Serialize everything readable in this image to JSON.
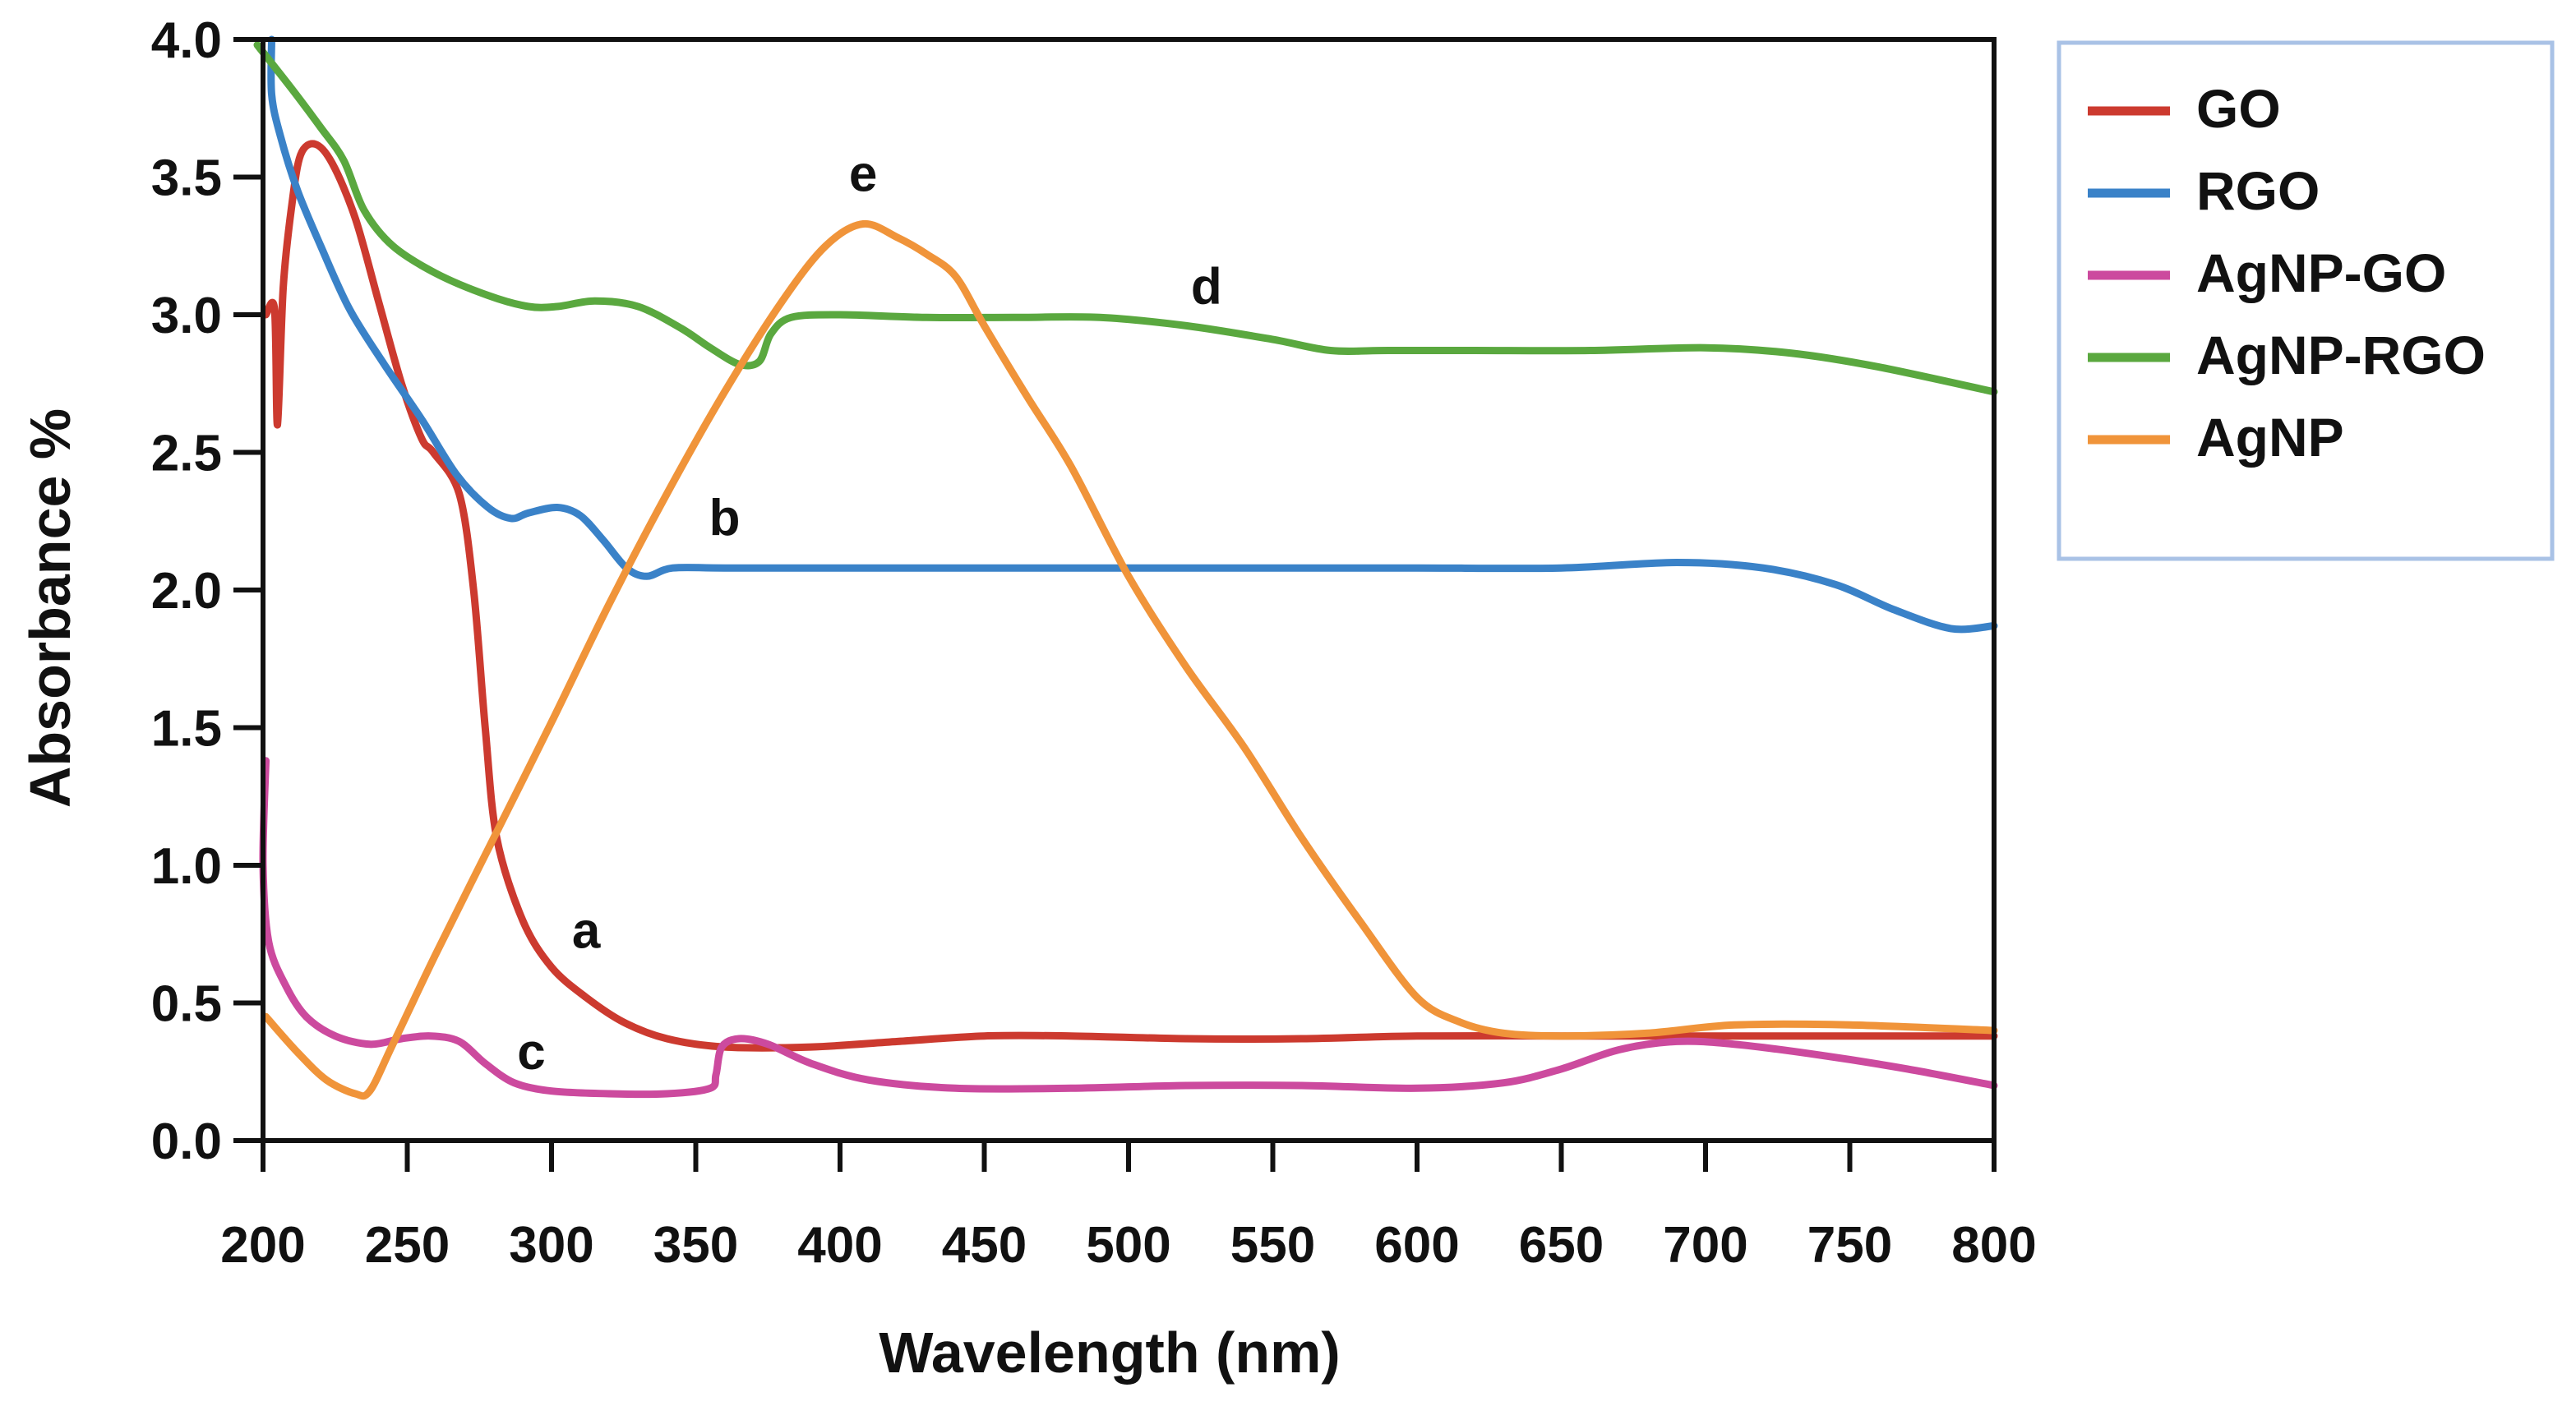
{
  "chart_data": {
    "type": "line",
    "title": "",
    "xlabel": "Wavelength (nm)",
    "ylabel": "Absorbance %",
    "xlim": [
      200,
      800
    ],
    "ylim": [
      0.0,
      4.0
    ],
    "x_ticks": [
      200,
      250,
      300,
      350,
      400,
      450,
      500,
      550,
      600,
      650,
      700,
      750,
      800
    ],
    "x_tick_labels": [
      "200",
      "250",
      "300",
      "350",
      "400",
      "450",
      "500",
      "550",
      "600",
      "650",
      "700",
      "750",
      "800"
    ],
    "y_ticks": [
      0.0,
      0.5,
      1.0,
      1.5,
      2.0,
      2.5,
      3.0,
      3.5,
      4.0
    ],
    "y_tick_labels": [
      "0.0",
      "0.5",
      "1.0",
      "1.5",
      "2.0",
      "2.5",
      "3.0",
      "3.5",
      "4.0"
    ],
    "grid": false,
    "legend_position": "right",
    "series": [
      {
        "name": "GO",
        "color": "#cc3a2f",
        "curve_label": "a",
        "label_at": [
          312,
          0.7
        ],
        "points": [
          [
            201,
            3.0
          ],
          [
            204,
            3.02
          ],
          [
            205,
            2.6
          ],
          [
            207,
            3.1
          ],
          [
            210,
            3.4
          ],
          [
            213,
            3.58
          ],
          [
            218,
            3.62
          ],
          [
            224,
            3.55
          ],
          [
            232,
            3.35
          ],
          [
            240,
            3.05
          ],
          [
            248,
            2.75
          ],
          [
            255,
            2.55
          ],
          [
            259,
            2.5
          ],
          [
            268,
            2.35
          ],
          [
            273,
            2.0
          ],
          [
            277,
            1.5
          ],
          [
            281,
            1.1
          ],
          [
            290,
            0.8
          ],
          [
            300,
            0.63
          ],
          [
            312,
            0.52
          ],
          [
            325,
            0.43
          ],
          [
            340,
            0.37
          ],
          [
            360,
            0.34
          ],
          [
            390,
            0.34
          ],
          [
            420,
            0.36
          ],
          [
            450,
            0.38
          ],
          [
            480,
            0.38
          ],
          [
            520,
            0.37
          ],
          [
            560,
            0.37
          ],
          [
            600,
            0.38
          ],
          [
            650,
            0.38
          ],
          [
            700,
            0.38
          ],
          [
            750,
            0.38
          ],
          [
            800,
            0.38
          ]
        ]
      },
      {
        "name": "RGO",
        "color": "#3a82c8",
        "curve_label": "b",
        "label_at": [
          360,
          2.2
        ],
        "points": [
          [
            203,
            4.0
          ],
          [
            203,
            3.8
          ],
          [
            206,
            3.65
          ],
          [
            212,
            3.45
          ],
          [
            220,
            3.25
          ],
          [
            230,
            3.02
          ],
          [
            242,
            2.82
          ],
          [
            255,
            2.62
          ],
          [
            267,
            2.42
          ],
          [
            278,
            2.3
          ],
          [
            286,
            2.26
          ],
          [
            292,
            2.28
          ],
          [
            302,
            2.3
          ],
          [
            310,
            2.27
          ],
          [
            318,
            2.18
          ],
          [
            326,
            2.08
          ],
          [
            333,
            2.05
          ],
          [
            342,
            2.08
          ],
          [
            360,
            2.08
          ],
          [
            400,
            2.08
          ],
          [
            450,
            2.08
          ],
          [
            500,
            2.08
          ],
          [
            550,
            2.08
          ],
          [
            600,
            2.08
          ],
          [
            650,
            2.08
          ],
          [
            690,
            2.1
          ],
          [
            720,
            2.08
          ],
          [
            745,
            2.02
          ],
          [
            765,
            1.93
          ],
          [
            785,
            1.86
          ],
          [
            800,
            1.87
          ]
        ]
      },
      {
        "name": "AgNP-GO",
        "color": "#cc4a9e",
        "curve_label": "c",
        "label_at": [
          293,
          0.26
        ],
        "points": [
          [
            201,
            1.38
          ],
          [
            200,
            1.0
          ],
          [
            202,
            0.72
          ],
          [
            208,
            0.56
          ],
          [
            215,
            0.45
          ],
          [
            225,
            0.38
          ],
          [
            237,
            0.35
          ],
          [
            248,
            0.37
          ],
          [
            258,
            0.38
          ],
          [
            268,
            0.36
          ],
          [
            277,
            0.28
          ],
          [
            287,
            0.21
          ],
          [
            300,
            0.18
          ],
          [
            320,
            0.17
          ],
          [
            340,
            0.17
          ],
          [
            355,
            0.19
          ],
          [
            357,
            0.24
          ],
          [
            359,
            0.34
          ],
          [
            365,
            0.37
          ],
          [
            375,
            0.35
          ],
          [
            390,
            0.28
          ],
          [
            410,
            0.22
          ],
          [
            440,
            0.19
          ],
          [
            480,
            0.19
          ],
          [
            520,
            0.2
          ],
          [
            560,
            0.2
          ],
          [
            600,
            0.19
          ],
          [
            630,
            0.21
          ],
          [
            650,
            0.26
          ],
          [
            670,
            0.33
          ],
          [
            690,
            0.36
          ],
          [
            710,
            0.35
          ],
          [
            740,
            0.31
          ],
          [
            770,
            0.26
          ],
          [
            800,
            0.2
          ]
        ]
      },
      {
        "name": "AgNP-RGO",
        "color": "#5aa83f",
        "curve_label": "d",
        "label_at": [
          527,
          3.04
        ],
        "points": [
          [
            198,
            3.98
          ],
          [
            210,
            3.82
          ],
          [
            220,
            3.68
          ],
          [
            228,
            3.56
          ],
          [
            235,
            3.38
          ],
          [
            245,
            3.25
          ],
          [
            260,
            3.15
          ],
          [
            278,
            3.07
          ],
          [
            292,
            3.03
          ],
          [
            302,
            3.03
          ],
          [
            315,
            3.05
          ],
          [
            330,
            3.03
          ],
          [
            345,
            2.95
          ],
          [
            355,
            2.88
          ],
          [
            365,
            2.82
          ],
          [
            372,
            2.83
          ],
          [
            376,
            2.93
          ],
          [
            383,
            2.99
          ],
          [
            400,
            3.0
          ],
          [
            430,
            2.99
          ],
          [
            460,
            2.99
          ],
          [
            490,
            2.99
          ],
          [
            520,
            2.96
          ],
          [
            550,
            2.91
          ],
          [
            570,
            2.87
          ],
          [
            590,
            2.87
          ],
          [
            620,
            2.87
          ],
          [
            660,
            2.87
          ],
          [
            700,
            2.88
          ],
          [
            730,
            2.86
          ],
          [
            760,
            2.81
          ],
          [
            800,
            2.72
          ]
        ]
      },
      {
        "name": "AgNP",
        "color": "#f0943a",
        "curve_label": "e",
        "label_at": [
          408,
          3.45
        ],
        "points": [
          [
            201,
            0.45
          ],
          [
            212,
            0.32
          ],
          [
            222,
            0.22
          ],
          [
            232,
            0.17
          ],
          [
            237,
            0.18
          ],
          [
            245,
            0.35
          ],
          [
            260,
            0.68
          ],
          [
            280,
            1.1
          ],
          [
            300,
            1.52
          ],
          [
            320,
            1.95
          ],
          [
            340,
            2.35
          ],
          [
            360,
            2.72
          ],
          [
            380,
            3.05
          ],
          [
            395,
            3.25
          ],
          [
            408,
            3.33
          ],
          [
            420,
            3.28
          ],
          [
            430,
            3.22
          ],
          [
            440,
            3.14
          ],
          [
            450,
            2.96
          ],
          [
            465,
            2.7
          ],
          [
            480,
            2.45
          ],
          [
            500,
            2.05
          ],
          [
            520,
            1.72
          ],
          [
            540,
            1.43
          ],
          [
            560,
            1.1
          ],
          [
            580,
            0.8
          ],
          [
            600,
            0.52
          ],
          [
            615,
            0.43
          ],
          [
            630,
            0.39
          ],
          [
            650,
            0.38
          ],
          [
            680,
            0.39
          ],
          [
            710,
            0.42
          ],
          [
            750,
            0.42
          ],
          [
            800,
            0.4
          ]
        ]
      }
    ]
  }
}
